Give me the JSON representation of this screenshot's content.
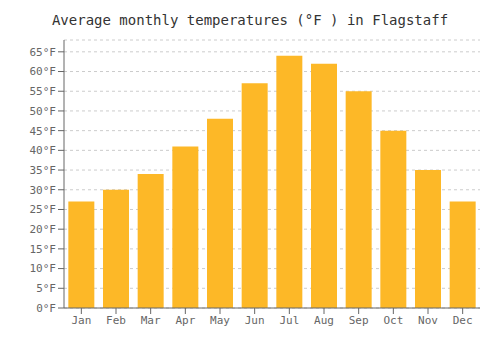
{
  "chart_data": {
    "type": "bar",
    "title": "Average monthly temperatures (°F ) in Flagstaff",
    "categories": [
      "Jan",
      "Feb",
      "Mar",
      "Apr",
      "May",
      "Jun",
      "Jul",
      "Aug",
      "Sep",
      "Oct",
      "Nov",
      "Dec"
    ],
    "values": [
      27,
      30,
      34,
      41,
      48,
      57,
      64,
      62,
      55,
      45,
      35,
      27
    ],
    "color": "#FDB827",
    "ylim": [
      0,
      68
    ],
    "yticks": [
      {
        "value": 0,
        "label": "0°F"
      },
      {
        "value": 5,
        "label": "5°F"
      },
      {
        "value": 10,
        "label": "10°F"
      },
      {
        "value": 15,
        "label": "15°F"
      },
      {
        "value": 20,
        "label": "20°F"
      },
      {
        "value": 25,
        "label": "25°F"
      },
      {
        "value": 30,
        "label": "30°F"
      },
      {
        "value": 35,
        "label": "35°F"
      },
      {
        "value": 40,
        "label": "40°F"
      },
      {
        "value": 45,
        "label": "45°F"
      },
      {
        "value": 50,
        "label": "50°F"
      },
      {
        "value": 55,
        "label": "55°F"
      },
      {
        "value": 60,
        "label": "60°F"
      },
      {
        "value": 65,
        "label": "65°F"
      }
    ],
    "grid": true
  }
}
